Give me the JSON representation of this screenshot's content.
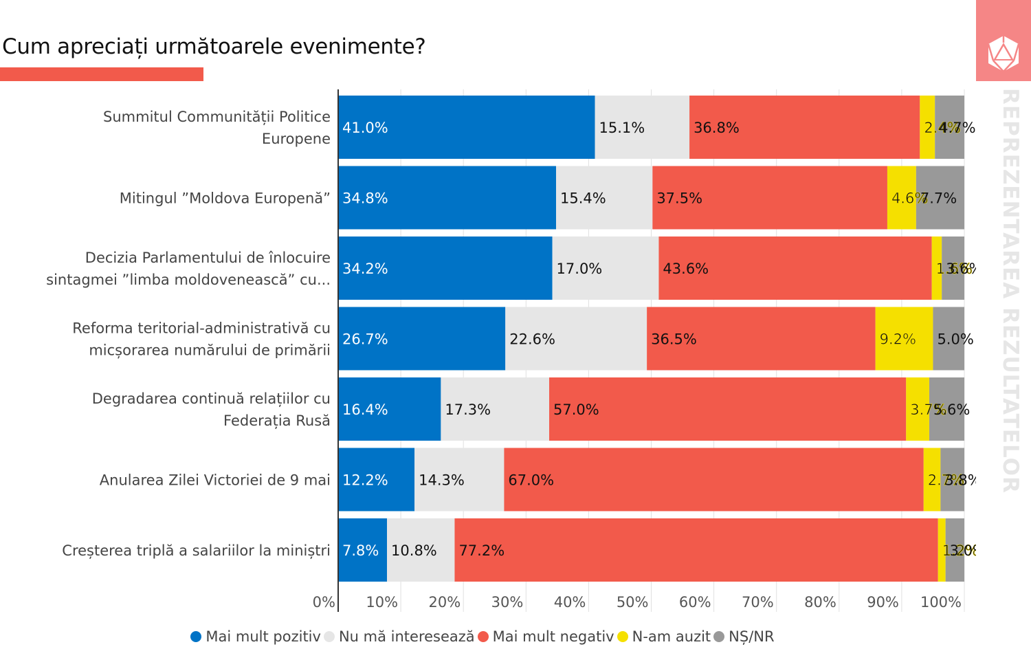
{
  "header": {
    "title": "Cum apreciați următoarele evenimente?",
    "side_text": "REPREZENTAREA REZULTATELOR",
    "logo_icon": "d20-dice-icon"
  },
  "chart_data": {
    "type": "bar",
    "orientation": "horizontal",
    "stacked": true,
    "title": "Cum apreciați următoarele evenimente?",
    "xlabel": "",
    "ylabel": "",
    "xlim": [
      0,
      100
    ],
    "x_unit": "%",
    "grid": true,
    "legend_position": "bottom",
    "ticks": [
      "0%",
      "10%",
      "20%",
      "30%",
      "40%",
      "50%",
      "60%",
      "70%",
      "80%",
      "90%",
      "100%"
    ],
    "tick_values": [
      0,
      10,
      20,
      30,
      40,
      50,
      60,
      70,
      80,
      90,
      100
    ],
    "categories": [
      [
        "Summitul Communității Politice",
        "Europene"
      ],
      [
        "Mitingul ”Moldova Europenă”"
      ],
      [
        "Decizia Parlamentului de înlocuire",
        "sintagmei ”limba moldovenească” cu..."
      ],
      [
        "Reforma teritorial-administrativă cu",
        "micșorarea numărului de primării"
      ],
      [
        "Degradarea continuă relațiilor cu",
        "Federația Rusă"
      ],
      [
        "Anularea Zilei Victoriei de 9 mai"
      ],
      [
        "Creșterea triplă a salariilor la miniștri"
      ]
    ],
    "series": [
      {
        "name": "Mai mult pozitiv",
        "color": "#0073c6",
        "label_color": "#ffffff",
        "values": [
          41.0,
          34.8,
          34.2,
          26.7,
          16.4,
          12.2,
          7.8
        ]
      },
      {
        "name": "Nu mă interesează",
        "color": "#e6e6e6",
        "label_color": "#111111",
        "values": [
          15.1,
          15.4,
          17.0,
          22.6,
          17.3,
          14.3,
          10.8
        ]
      },
      {
        "name": "Mai mult negativ",
        "color": "#f25a4b",
        "label_color": "#111111",
        "values": [
          36.8,
          37.5,
          43.6,
          36.5,
          57.0,
          67.0,
          77.2
        ]
      },
      {
        "name": "N-am auzit",
        "color": "#f5e000",
        "label_color": "#111111",
        "values": [
          2.4,
          4.6,
          1.6,
          9.2,
          3.7,
          2.7,
          1.2
        ]
      },
      {
        "name": "NȘ/NR",
        "color": "#999999",
        "label_color": "#111111",
        "values": [
          4.7,
          7.7,
          3.6,
          5.0,
          5.6,
          3.8,
          3.0
        ]
      }
    ]
  }
}
